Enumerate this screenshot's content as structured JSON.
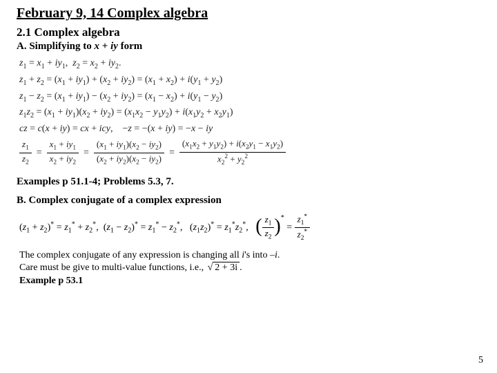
{
  "title": "February 9, 14 Complex algebra",
  "subtitle": "2.1 Complex algebra",
  "section_a_prefix": "A. Simplifying to ",
  "section_a_var1": "x",
  "section_a_mid": " + ",
  "section_a_var2": "iy",
  "section_a_suffix": " form",
  "math": {
    "line1_a": "z",
    "line1_b": "= x",
    "line1_c": "+ iy",
    "line1_d": ", z",
    "line1_e": "= x",
    "line1_f": "+ iy",
    "line1_g": ".",
    "line2": "z₁ + z₂ = (x₁ + iy₁) + (x₂ + iy₂) = (x₁ + x₂) + i(y₁ + y₂)",
    "line3": "z₁ − z₂ = (x₁ + iy₁) − (x₂ + iy₂) = (x₁ − x₂) + i(y₁ − y₂)",
    "line4": "z₁z₂ = (x₁ + iy₁)(x₂ + iy₂) = (x₁x₂ − y₁y₂) + i(x₁y₂ + x₂y₁)",
    "line5": "cz = c(x + iy) = cx + icy,   −z = −(x + iy) = −x − iy",
    "frac_z1": "z₁",
    "frac_z2": "z₂",
    "frac_mid1_num": "x₁ + iy₁",
    "frac_mid1_den": "x₂ + iy₂",
    "frac_mid2_num": "(x₁ + iy₁)(x₂ − iy₂)",
    "frac_mid2_den": "(x₂ + iy₂)(x₂ − iy₂)",
    "frac_r_num": "(x₁x₂ + y₁y₂) + i(x₂y₁ − x₁y₂)",
    "frac_r_den": "x₂² + y₂²"
  },
  "examples": "Examples  p 51.1-4; Problems 5.3, 7.",
  "section_b": "B. Complex conjugate of a complex expression",
  "conj": {
    "p1": "(z₁ + z₂)* = z₁* + z₂*, (z₁ − z₂)* = z₁* − z₂*,  (z₁z₂)* = z₁*z₂*,",
    "frac_lnum": "z₁",
    "frac_lden": "z₂",
    "frac_rnum": "z₁*",
    "frac_rden": "z₂*"
  },
  "body1_a": "The complex conjugate of any expression is changing all ",
  "body1_i1": "i",
  "body1_b": "'s into –",
  "body1_i2": "i",
  "body1_c": ".",
  "body2_a": "Care must be give to multi-value functions, i.e., ",
  "body2_rad": "2 + 3i",
  "body2_b": ".",
  "example_p53": "Example p 53.1",
  "pageno": "5",
  "colors": {
    "background": "#ffffff",
    "text": "#000000"
  }
}
